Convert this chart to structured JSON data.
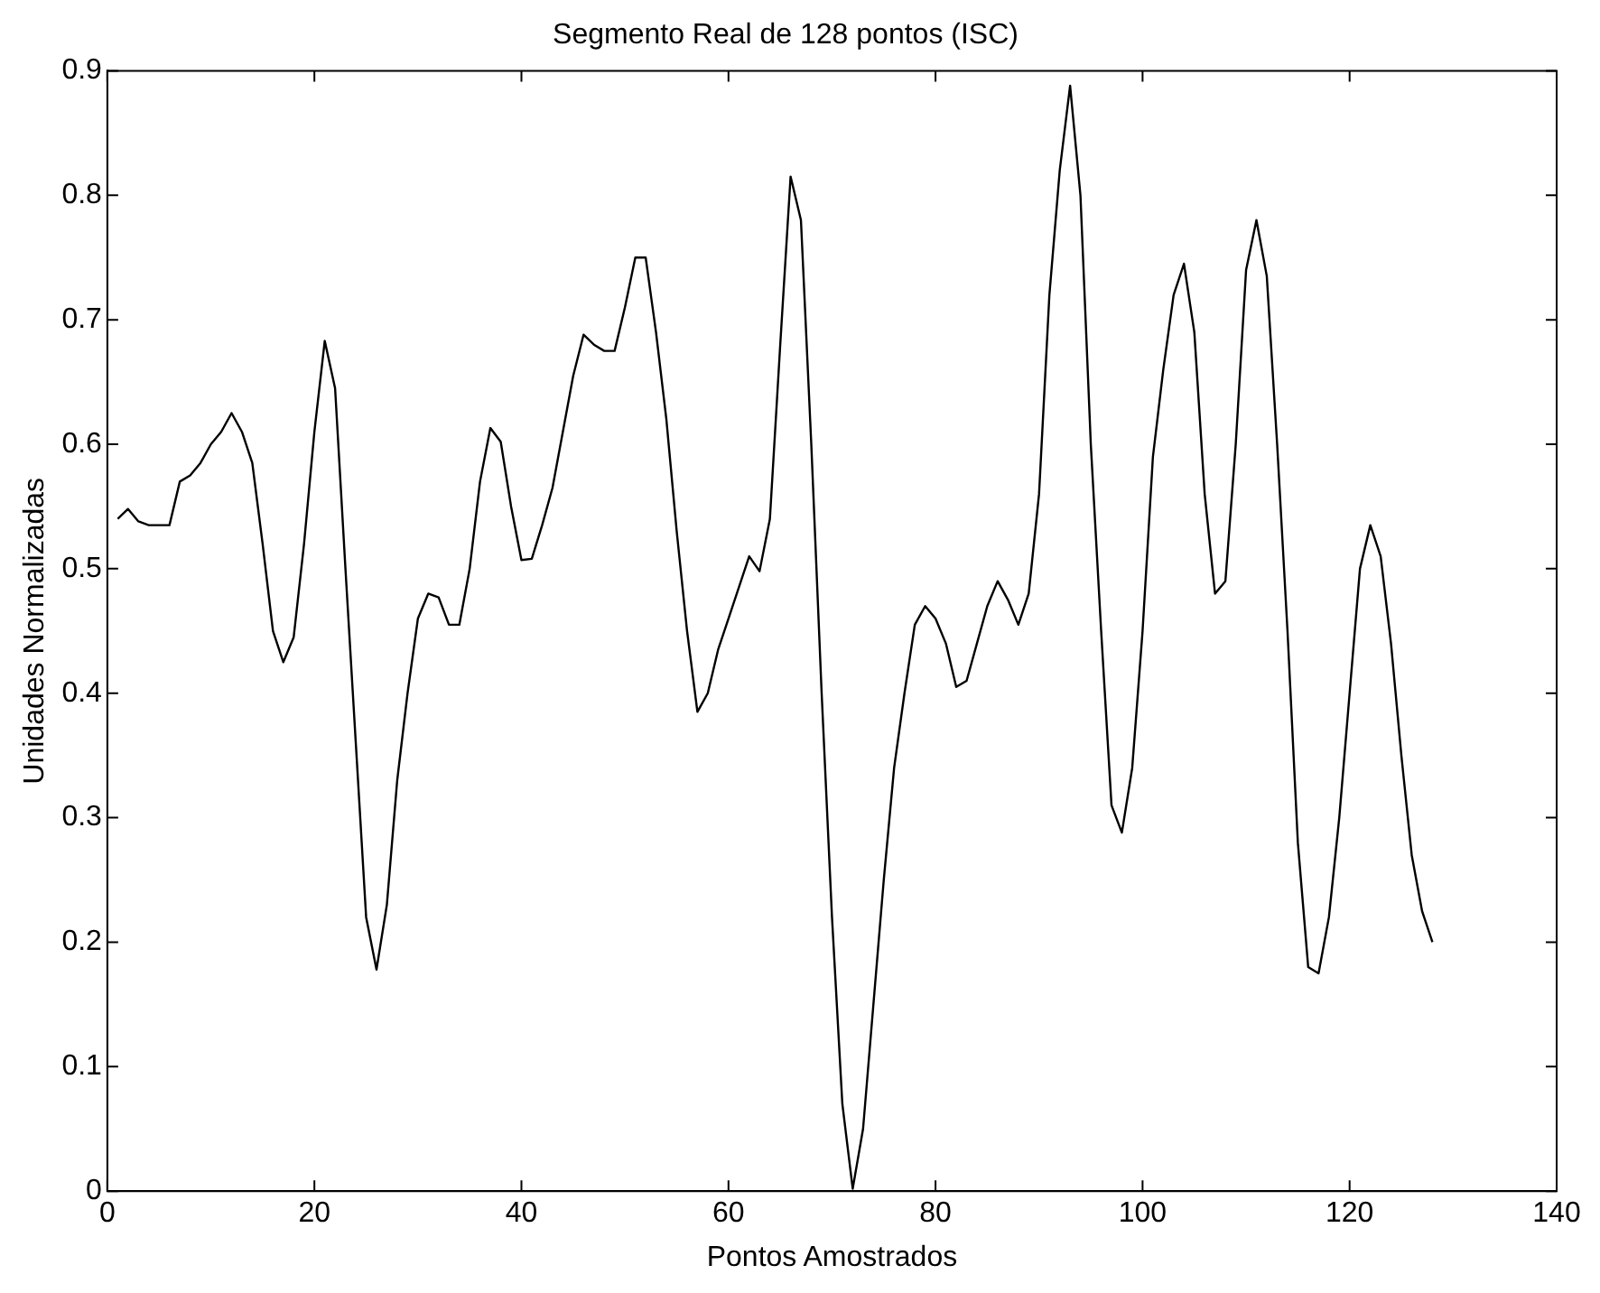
{
  "chart_data": {
    "type": "line",
    "title": "Segmento Real de 128 pontos (ISC)",
    "xlabel": "Pontos Amostrados",
    "ylabel": "Unidades Normalizadas",
    "x": [
      1,
      2,
      3,
      4,
      5,
      6,
      7,
      8,
      9,
      10,
      11,
      12,
      13,
      14,
      15,
      16,
      17,
      18,
      19,
      20,
      21,
      22,
      23,
      24,
      25,
      26,
      27,
      28,
      29,
      30,
      31,
      32,
      33,
      34,
      35,
      36,
      37,
      38,
      39,
      40,
      41,
      42,
      43,
      44,
      45,
      46,
      47,
      48,
      49,
      50,
      51,
      52,
      53,
      54,
      55,
      56,
      57,
      58,
      59,
      60,
      61,
      62,
      63,
      64,
      65,
      66,
      67,
      68,
      69,
      70,
      71,
      72,
      73,
      74,
      75,
      76,
      77,
      78,
      79,
      80,
      81,
      82,
      83,
      84,
      85,
      86,
      87,
      88,
      89,
      90,
      91,
      92,
      93,
      94,
      95,
      96,
      97,
      98,
      99,
      100,
      101,
      102,
      103,
      104,
      105,
      106,
      107,
      108,
      109,
      110,
      111,
      112,
      113,
      114,
      115,
      116,
      117,
      118,
      119,
      120,
      121,
      122,
      123,
      124,
      125,
      126,
      127,
      128
    ],
    "series": [
      {
        "color": "#000000",
        "values": [
          0.54,
          0.548,
          0.538,
          0.535,
          0.535,
          0.535,
          0.57,
          0.575,
          0.585,
          0.6,
          0.61,
          0.625,
          0.61,
          0.585,
          0.52,
          0.45,
          0.425,
          0.445,
          0.52,
          0.61,
          0.683,
          0.645,
          0.5,
          0.36,
          0.22,
          0.178,
          0.23,
          0.33,
          0.4,
          0.46,
          0.48,
          0.477,
          0.455,
          0.455,
          0.5,
          0.57,
          0.613,
          0.602,
          0.55,
          0.507,
          0.508,
          0.535,
          0.565,
          0.61,
          0.655,
          0.688,
          0.68,
          0.675,
          0.675,
          0.71,
          0.75,
          0.75,
          0.69,
          0.62,
          0.53,
          0.45,
          0.385,
          0.4,
          0.435,
          0.46,
          0.485,
          0.51,
          0.498,
          0.54,
          0.68,
          0.815,
          0.78,
          0.6,
          0.4,
          0.22,
          0.07,
          0.002,
          0.05,
          0.15,
          0.25,
          0.34,
          0.4,
          0.455,
          0.47,
          0.46,
          0.44,
          0.405,
          0.41,
          0.44,
          0.47,
          0.49,
          0.475,
          0.455,
          0.48,
          0.56,
          0.72,
          0.82,
          0.888,
          0.8,
          0.6,
          0.45,
          0.31,
          0.288,
          0.34,
          0.45,
          0.59,
          0.66,
          0.72,
          0.745,
          0.69,
          0.56,
          0.48,
          0.49,
          0.6,
          0.74,
          0.78,
          0.735,
          0.6,
          0.45,
          0.28,
          0.18,
          0.175,
          0.22,
          0.3,
          0.4,
          0.5,
          0.535,
          0.51,
          0.44,
          0.35,
          0.27,
          0.225,
          0.2
        ]
      }
    ],
    "xlim": [
      0,
      140
    ],
    "xticks": [
      0,
      20,
      40,
      60,
      80,
      100,
      120,
      140
    ],
    "ylim": [
      0,
      0.9
    ],
    "yticks": [
      0,
      0.1,
      0.2,
      0.3,
      0.4,
      0.5,
      0.6,
      0.7,
      0.8,
      0.9
    ],
    "grid": false,
    "legend": false,
    "marker": "none",
    "line_style": "solid"
  }
}
